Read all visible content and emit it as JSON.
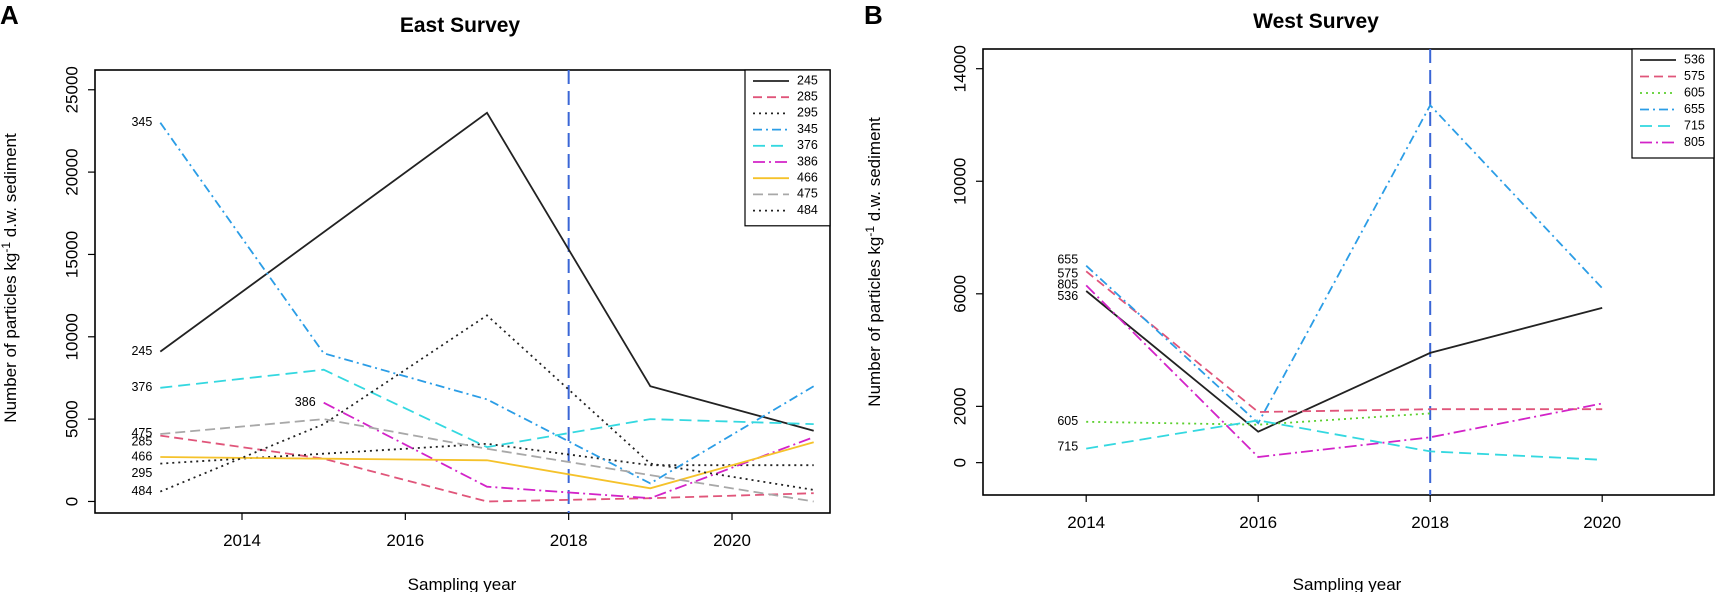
{
  "chart_data": [
    {
      "panel": "A",
      "type": "line",
      "title": "East Survey",
      "xlabel": "Sampling year",
      "ylabel": "Number of particles kg⁻¹ d.w. sediment",
      "xlim": [
        2012.2,
        2021.2
      ],
      "ylim": [
        -700,
        26200
      ],
      "xticks": [
        2014,
        2016,
        2018,
        2020
      ],
      "yticks": [
        0,
        5000,
        10000,
        15000,
        20000,
        25000
      ],
      "reference_line_x": 2018,
      "reference_line_color": "#3a66d6",
      "legend_position": "top-right",
      "series": [
        {
          "name": "245",
          "color": "#222222",
          "dash": "",
          "x": [
            2013,
            2017,
            2019,
            2021
          ],
          "y": [
            9100,
            23600,
            7000,
            4300
          ]
        },
        {
          "name": "285",
          "color": "#e0557a",
          "dash": "9,5",
          "x": [
            2013,
            2015,
            2017,
            2019,
            2021
          ],
          "y": [
            4000,
            2600,
            0,
            200,
            500
          ]
        },
        {
          "name": "295",
          "color": "#222222",
          "dash": "2,4",
          "x": [
            2013,
            2015,
            2017,
            2019,
            2021
          ],
          "y": [
            2300,
            2900,
            3500,
            2200,
            2200
          ]
        },
        {
          "name": "345",
          "color": "#2b9de6",
          "dash": "9,4,2,4",
          "x": [
            2013,
            2015,
            2017,
            2019,
            2021
          ],
          "y": [
            23000,
            9000,
            6200,
            1100,
            7000
          ]
        },
        {
          "name": "376",
          "color": "#34d8e0",
          "dash": "12,6",
          "x": [
            2013,
            2015,
            2017,
            2019,
            2021
          ],
          "y": [
            6900,
            8000,
            3300,
            5000,
            4700
          ]
        },
        {
          "name": "386",
          "color": "#d323c8",
          "dash": "12,4,2,4",
          "x": [
            2015,
            2017,
            2019,
            2021
          ],
          "y": [
            6000,
            900,
            200,
            3900
          ]
        },
        {
          "name": "466",
          "color": "#f5c22a",
          "dash": "",
          "x": [
            2013,
            2015,
            2017,
            2019,
            2021
          ],
          "y": [
            2700,
            2600,
            2500,
            800,
            3600
          ]
        },
        {
          "name": "475",
          "color": "#a8a8a8",
          "dash": "10,5",
          "x": [
            2013,
            2015,
            2017,
            2019,
            2021
          ],
          "y": [
            4100,
            5000,
            3200,
            1600,
            0
          ]
        },
        {
          "name": "484",
          "color": "#222222",
          "dash": "2,4",
          "x": [
            2013,
            2015,
            2017,
            2019,
            2021
          ],
          "y": [
            600,
            4700,
            11300,
            2300,
            700
          ]
        }
      ],
      "line_labels": [
        {
          "text": "345",
          "x": 2013,
          "y": 23000
        },
        {
          "text": "245",
          "x": 2013,
          "y": 9100
        },
        {
          "text": "376",
          "x": 2013,
          "y": 6900
        },
        {
          "text": "386",
          "x": 2015,
          "y": 6000
        },
        {
          "text": "475",
          "x": 2013,
          "y": 4100
        },
        {
          "text": "285",
          "x": 2013,
          "y": 3600
        },
        {
          "text": "466",
          "x": 2013,
          "y": 2700
        },
        {
          "text": "295",
          "x": 2013,
          "y": 1700
        },
        {
          "text": "484",
          "x": 2013,
          "y": 600
        }
      ]
    },
    {
      "panel": "B",
      "type": "line",
      "title": "West Survey",
      "xlabel": "Sampling year",
      "ylabel": "Number of particles kg⁻¹ d.w. sediment",
      "xlim": [
        2012.8,
        2021.3
      ],
      "ylim": [
        -1150,
        14700
      ],
      "xticks": [
        2014,
        2016,
        2018,
        2020
      ],
      "yticks": [
        0,
        2000,
        6000,
        10000,
        14000
      ],
      "reference_line_x": 2018,
      "reference_line_color": "#3a66d6",
      "legend_position": "top-right",
      "series": [
        {
          "name": "536",
          "color": "#222222",
          "dash": "",
          "x": [
            2014,
            2016,
            2018,
            2020
          ],
          "y": [
            6100,
            1100,
            3900,
            5500
          ]
        },
        {
          "name": "575",
          "color": "#e0557a",
          "dash": "9,5",
          "x": [
            2014,
            2016,
            2018,
            2020
          ],
          "y": [
            6800,
            1800,
            1900,
            1900
          ]
        },
        {
          "name": "605",
          "color": "#5ccf2e",
          "dash": "2,4",
          "x": [
            2014,
            2016,
            2018
          ],
          "y": [
            1450,
            1350,
            1750
          ]
        },
        {
          "name": "655",
          "color": "#2b9de6",
          "dash": "9,4,2,4",
          "x": [
            2014,
            2016,
            2018,
            2020
          ],
          "y": [
            7000,
            1400,
            12700,
            6200
          ]
        },
        {
          "name": "715",
          "color": "#34d8e0",
          "dash": "12,6",
          "x": [
            2014,
            2016,
            2018,
            2020
          ],
          "y": [
            500,
            1500,
            400,
            100
          ]
        },
        {
          "name": "805",
          "color": "#d323c8",
          "dash": "12,4,2,4",
          "x": [
            2014,
            2016,
            2018,
            2020
          ],
          "y": [
            6300,
            200,
            900,
            2100
          ]
        }
      ],
      "line_labels": [
        {
          "text": "655",
          "x": 2014,
          "y": 7200
        },
        {
          "text": "575",
          "x": 2014,
          "y": 6700
        },
        {
          "text": "805",
          "x": 2014,
          "y": 6300
        },
        {
          "text": "536",
          "x": 2014,
          "y": 5900
        },
        {
          "text": "605",
          "x": 2014,
          "y": 1450
        },
        {
          "text": "715",
          "x": 2014,
          "y": 550
        }
      ]
    }
  ]
}
